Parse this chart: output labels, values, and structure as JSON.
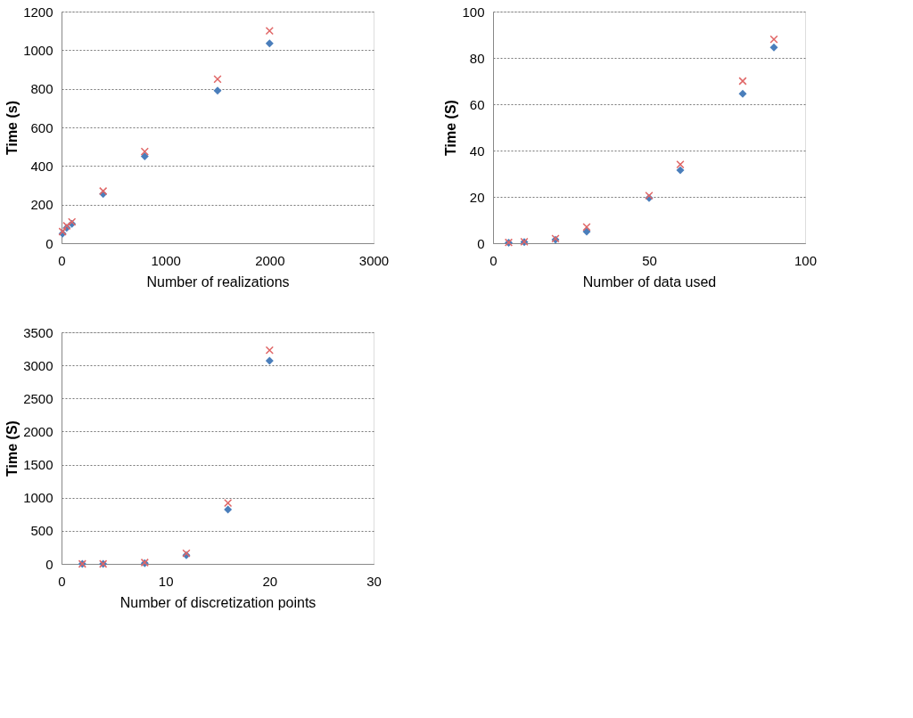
{
  "chart_data": [
    {
      "type": "scatter",
      "xlabel": "Number of realizations",
      "ylabel": "Time (s)",
      "xlim": [
        0,
        3000
      ],
      "xticks": [
        0,
        1000,
        2000,
        3000
      ],
      "ylim": [
        0,
        1200
      ],
      "yticks": [
        0,
        200,
        400,
        600,
        800,
        1000,
        1200
      ],
      "grid": "y",
      "series": [
        {
          "color": "#4a7ebb",
          "marker": "diamond",
          "x": [
            10,
            50,
            100,
            400,
            800,
            1500,
            2000
          ],
          "values": [
            50,
            80,
            100,
            255,
            450,
            790,
            1035
          ]
        },
        {
          "color": "#e06666",
          "marker": "cross",
          "x": [
            10,
            50,
            100,
            400,
            800,
            1500,
            2000
          ],
          "values": [
            60,
            90,
            110,
            270,
            475,
            850,
            1100
          ]
        }
      ]
    },
    {
      "type": "scatter",
      "xlabel": "Number of data used",
      "ylabel": "Time (S)",
      "xlim": [
        0,
        100
      ],
      "xticks": [
        0,
        50,
        100
      ],
      "ylim": [
        0,
        100
      ],
      "yticks": [
        0,
        20,
        40,
        60,
        80,
        100
      ],
      "grid": "y",
      "series": [
        {
          "color": "#4a7ebb",
          "marker": "diamond",
          "x": [
            5,
            10,
            20,
            30,
            50,
            60,
            80,
            90
          ],
          "values": [
            0.2,
            0.5,
            1.5,
            5,
            19.5,
            31.5,
            64.5,
            84.5
          ]
        },
        {
          "color": "#e06666",
          "marker": "cross",
          "x": [
            5,
            10,
            20,
            30,
            50,
            60,
            80,
            90
          ],
          "values": [
            0.3,
            0.6,
            2,
            7,
            20.5,
            34,
            70,
            88
          ]
        }
      ]
    },
    {
      "type": "scatter",
      "xlabel": "Number of discretization points",
      "ylabel": "Time (S)",
      "xlim": [
        0,
        30
      ],
      "xticks": [
        0,
        10,
        20,
        30
      ],
      "ylim": [
        0,
        3500
      ],
      "yticks": [
        0,
        500,
        1000,
        1500,
        2000,
        2500,
        3000,
        3500
      ],
      "grid": "y",
      "series": [
        {
          "color": "#4a7ebb",
          "marker": "diamond",
          "x": [
            2,
            4,
            8,
            12,
            16,
            20
          ],
          "values": [
            0,
            0,
            10,
            130,
            820,
            3070
          ]
        },
        {
          "color": "#e06666",
          "marker": "cross",
          "x": [
            2,
            4,
            8,
            12,
            16,
            20
          ],
          "values": [
            0,
            0,
            20,
            160,
            920,
            3230
          ]
        }
      ]
    }
  ]
}
